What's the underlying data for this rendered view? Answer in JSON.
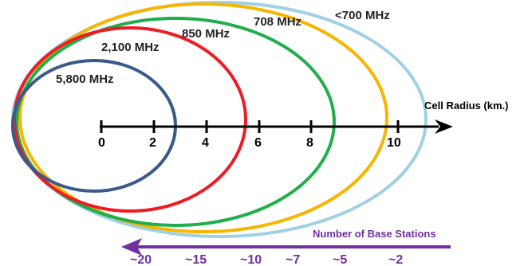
{
  "bands": [
    {
      "label": "5,800 MHz",
      "color": "#3a5a8a"
    },
    {
      "label": "2,100 MHz",
      "color": "#ee1c24"
    },
    {
      "label": "850 MHz",
      "color": "#1fae4b"
    },
    {
      "label": "708 MHz",
      "color": "#f7b500"
    },
    {
      "label": "<700 MHz",
      "color": "#9fd0e3"
    }
  ],
  "axis": {
    "label": "Cell Radius (km.)",
    "ticks": [
      "0",
      "2",
      "4",
      "6",
      "8",
      "10"
    ]
  },
  "base_stations": {
    "label": "Number of Base Stations",
    "color": "#7030a0",
    "values": [
      "~20",
      "~15",
      "~10",
      "~7",
      "~5",
      "~2"
    ]
  }
}
